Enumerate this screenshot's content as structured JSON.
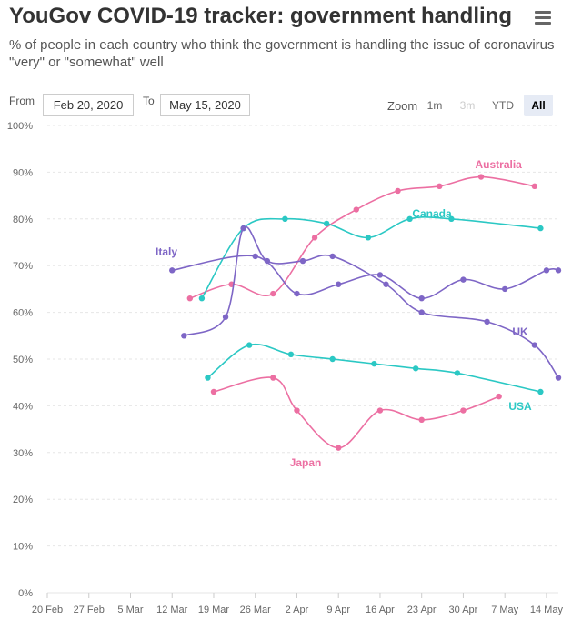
{
  "header": {
    "title": "YouGov COVID-19 tracker: government handling",
    "subtitle": "% of people in each country who think the government is handling the issue of coronavirus \"very\" or \"somewhat\" well",
    "menu_icon": "hamburger-menu-icon"
  },
  "range_selector": {
    "from_label": "From",
    "from_value": "Feb 20, 2020",
    "to_label": "To",
    "to_value": "May 15, 2020",
    "zoom_label": "Zoom",
    "zoom_options": [
      "1m",
      "3m",
      "YTD",
      "All"
    ],
    "zoom_selected": "All",
    "zoom_disabled": [
      "3m"
    ]
  },
  "chart_data": {
    "type": "line",
    "ylim": [
      0,
      100
    ],
    "yticks": [
      "0%",
      "10%",
      "20%",
      "30%",
      "40%",
      "50%",
      "60%",
      "70%",
      "80%",
      "90%",
      "100%"
    ],
    "xlim": [
      "2020-02-20",
      "2020-05-16"
    ],
    "xticks": [
      "20 Feb",
      "27 Feb",
      "5 Mar",
      "12 Mar",
      "19 Mar",
      "26 Mar",
      "2 Apr",
      "9 Apr",
      "16 Apr",
      "23 Apr",
      "30 Apr",
      "7 May",
      "14 May"
    ],
    "grid": true,
    "series": [
      {
        "name": "Australia",
        "color": "#ec6fa2",
        "x": [
          "2020-03-15",
          "2020-03-22",
          "2020-03-29",
          "2020-04-05",
          "2020-04-12",
          "2020-04-19",
          "2020-04-26",
          "2020-05-03",
          "2020-05-12"
        ],
        "y": [
          63,
          66,
          64,
          76,
          82,
          86,
          87,
          89,
          87
        ]
      },
      {
        "name": "Canada",
        "color": "#2bc8c4",
        "x": [
          "2020-03-17",
          "2020-03-24",
          "2020-03-31",
          "2020-04-07",
          "2020-04-14",
          "2020-04-21",
          "2020-04-28",
          "2020-05-13"
        ],
        "y": [
          63,
          78,
          80,
          79,
          76,
          80,
          80,
          78
        ]
      },
      {
        "name": "Italy",
        "color": "#7e66c6",
        "x": [
          "2020-03-12",
          "2020-03-26",
          "2020-04-02",
          "2020-04-09",
          "2020-04-16",
          "2020-04-23",
          "2020-04-30",
          "2020-05-07",
          "2020-05-14",
          "2020-05-16"
        ],
        "y": [
          69,
          72,
          64,
          66,
          68,
          63,
          67,
          65,
          69,
          69
        ]
      },
      {
        "name": "UK",
        "color": "#7e66c6",
        "x": [
          "2020-03-14",
          "2020-03-21",
          "2020-03-24",
          "2020-03-28",
          "2020-04-03",
          "2020-04-08",
          "2020-04-17",
          "2020-04-23",
          "2020-05-04",
          "2020-05-12",
          "2020-05-16"
        ],
        "y": [
          55,
          59,
          78,
          71,
          71,
          72,
          66,
          60,
          58,
          53,
          46
        ]
      },
      {
        "name": "USA",
        "color": "#2bc8c4",
        "x": [
          "2020-03-18",
          "2020-03-25",
          "2020-04-01",
          "2020-04-08",
          "2020-04-15",
          "2020-04-22",
          "2020-04-29",
          "2020-05-13"
        ],
        "y": [
          46,
          53,
          51,
          50,
          49,
          48,
          47,
          43
        ]
      },
      {
        "name": "Japan",
        "color": "#ec6fa2",
        "x": [
          "2020-03-19",
          "2020-03-29",
          "2020-04-02",
          "2020-04-09",
          "2020-04-16",
          "2020-04-23",
          "2020-04-30",
          "2020-05-06"
        ],
        "y": [
          43,
          46,
          39,
          31,
          39,
          37,
          39,
          42
        ]
      }
    ]
  }
}
